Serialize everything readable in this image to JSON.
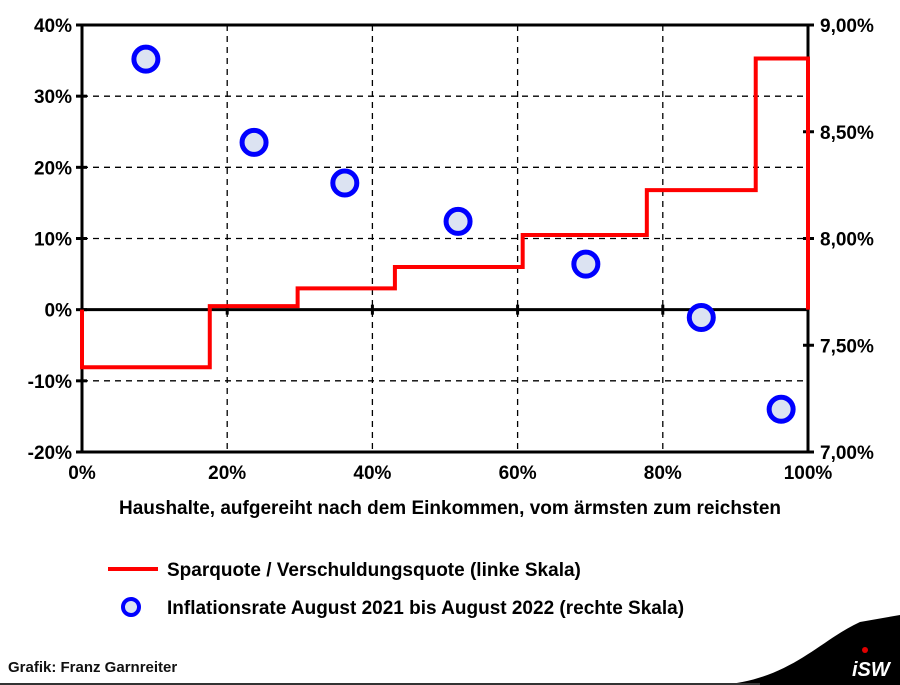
{
  "chart_data": {
    "type": "line",
    "xlabel": "Haushalte, aufgereiht nach dem Einkommen, vom ärmsten zum reichsten",
    "xlim": [
      0,
      100
    ],
    "ylim_left": [
      -20,
      40
    ],
    "ylim_right": [
      7.0,
      9.0
    ],
    "x_ticks": [
      "0%",
      "20%",
      "40%",
      "60%",
      "80%",
      "100%"
    ],
    "x_tick_values": [
      0,
      20,
      40,
      60,
      80,
      100
    ],
    "y_left_ticks": [
      "40%",
      "30%",
      "20%",
      "10%",
      "0%",
      "-10%",
      "-20%"
    ],
    "y_left_tick_values": [
      40,
      30,
      20,
      10,
      0,
      -10,
      -20
    ],
    "y_right_ticks": [
      "9,00%",
      "8,50%",
      "8,00%",
      "7,50%",
      "7,00%"
    ],
    "y_right_tick_values": [
      9.0,
      8.5,
      8.0,
      7.5,
      7.0
    ],
    "grid": true,
    "series": [
      {
        "name": "Sparquote / Verschuldungsquote (linke Skala)",
        "type": "step",
        "axis": "left",
        "color": "#ff0000",
        "x": [
          0,
          17.6,
          29.7,
          43.1,
          60.7,
          77.8,
          92.8,
          100
        ],
        "y": [
          -8.1,
          0.5,
          3.0,
          6.0,
          10.5,
          16.8,
          35.3,
          0
        ]
      },
      {
        "name": "Inflationsrate August 2021 bis August 2022 (rechte Skala)",
        "type": "scatter",
        "axis": "right",
        "color": "#0000ff",
        "fill": "#dce3f2",
        "x": [
          8.8,
          23.7,
          36.2,
          51.8,
          69.4,
          85.3,
          96.3
        ],
        "y": [
          8.84,
          8.45,
          8.26,
          8.08,
          7.88,
          7.63,
          7.2
        ]
      }
    ],
    "legend_position": "bottom"
  },
  "footer": {
    "credit": "Grafik: Franz Garnreiter",
    "logo_text": "iSW"
  }
}
